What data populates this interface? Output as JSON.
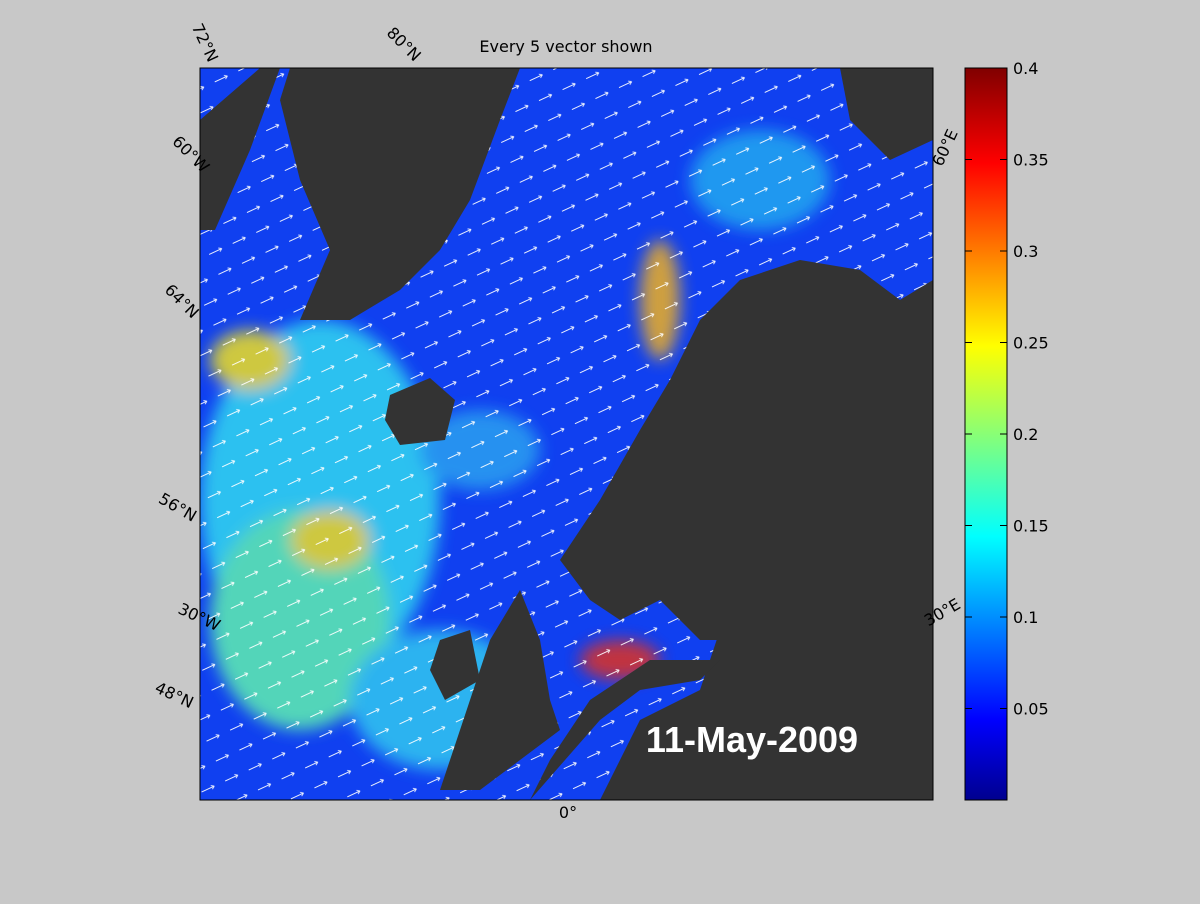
{
  "title": "Every 5 vector shown",
  "date_label": "11-May-2009",
  "map": {
    "lat_labels": [
      "72°N",
      "80°N",
      "64°N",
      "56°N",
      "48°N"
    ],
    "lon_labels": [
      "60°W",
      "30°W",
      "0°",
      "60°E",
      "30°E"
    ]
  },
  "colorbar": {
    "lim": [
      0,
      0.4
    ],
    "ticks": [
      0.05,
      0.1,
      0.15,
      0.2,
      0.25,
      0.3,
      0.35,
      0.4
    ]
  }
}
